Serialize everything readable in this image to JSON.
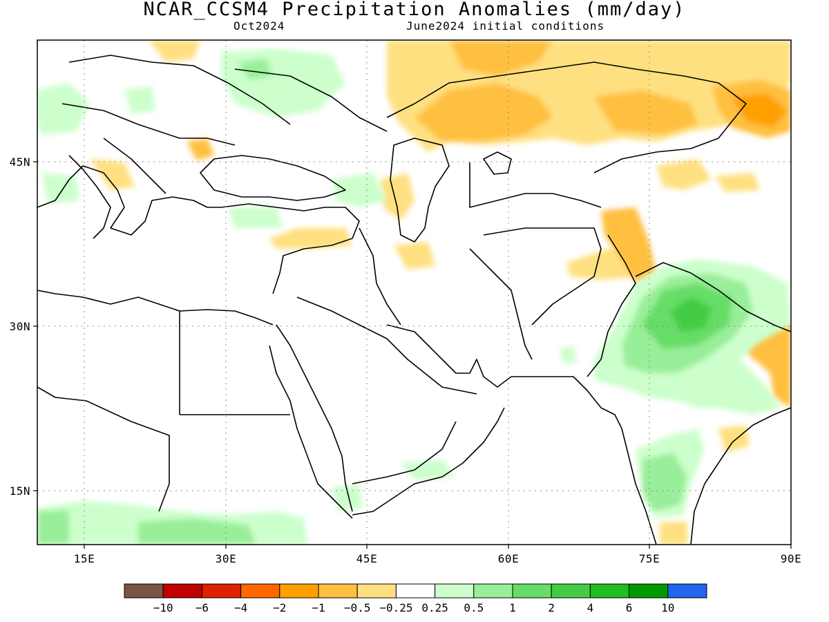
{
  "title": "NCAR_CCSM4 Precipitation Anomalies (mm/day)",
  "valid_month": "Oct2024",
  "init_conditions": "June2024 initial conditions",
  "map": {
    "lon_range": [
      10,
      90
    ],
    "lat_range": [
      10,
      57
    ],
    "lon_ticks": [
      "15E",
      "30E",
      "45E",
      "60E",
      "75E",
      "90E"
    ],
    "lat_ticks": [
      "45N",
      "30N",
      "15N"
    ],
    "grid": "dotted"
  },
  "legend": {
    "colors": [
      "#7a5543",
      "#c00000",
      "#dd2200",
      "#ff6600",
      "#ffa000",
      "#ffc040",
      "#ffe080",
      "#ffffff",
      "#ccffcc",
      "#99ee99",
      "#66dd66",
      "#44cc44",
      "#22bb22",
      "#009900",
      "#2266ee"
    ],
    "labels": [
      "−10",
      "−6",
      "−4",
      "−2",
      "−1",
      "−0.5",
      "−0.25",
      "0.25",
      "0.5",
      "1",
      "2",
      "4",
      "6",
      "10"
    ]
  },
  "colors": {
    "dry_light": "#ffe080",
    "dry_medium": "#ffc040",
    "dry_strong": "#ffa000",
    "wet_light": "#ccffcc",
    "wet_medium": "#99ee99",
    "wet_strong": "#66dd66",
    "wet_core": "#44cc44"
  }
}
